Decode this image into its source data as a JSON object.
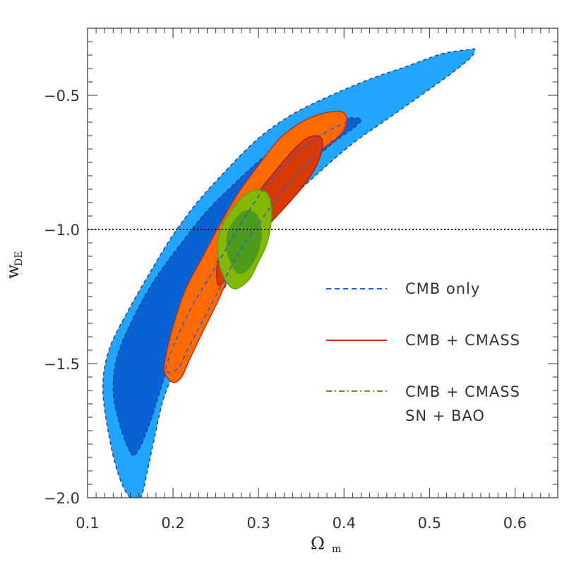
{
  "chart_data": {
    "type": "contour",
    "xlabel": "Ω",
    "xlabel_sub": "m",
    "ylabel": "w",
    "ylabel_sub": "DE",
    "xlim": [
      0.1,
      0.65
    ],
    "ylim": [
      -2.0,
      -0.25
    ],
    "xticks": [
      0.1,
      0.2,
      0.3,
      0.4,
      0.5,
      0.6
    ],
    "xtick_labels": [
      "0.1",
      "0.2",
      "0.3",
      "0.4",
      "0.5",
      "0.6"
    ],
    "yticks": [
      -2.0,
      -1.5,
      -1.0,
      -0.5
    ],
    "ytick_labels": [
      "−2.0",
      "−1.5",
      "−1.0",
      "−0.5"
    ],
    "reference_line": {
      "y": -1.0,
      "style": "dotted"
    },
    "legend": [
      {
        "label": "CMB only",
        "style": "dashed",
        "color": "#2a5fd0"
      },
      {
        "label": "CMB + CMASS",
        "style": "solid",
        "color": "#d02a10"
      },
      {
        "label": "CMB + CMASS",
        "label2": "SN + BAO",
        "style": "dashdot",
        "color": "#5aa010"
      }
    ],
    "contours": [
      {
        "name": "CMB only 95%",
        "fill": "#22a5ff",
        "stroke": "#1a3f8a",
        "dash": "5,4",
        "points": [
          [
            0.15,
            -2.0
          ],
          [
            0.138,
            -1.93
          ],
          [
            0.127,
            -1.8
          ],
          [
            0.118,
            -1.6
          ],
          [
            0.125,
            -1.45
          ],
          [
            0.148,
            -1.3
          ],
          [
            0.175,
            -1.15
          ],
          [
            0.2,
            -1.02
          ],
          [
            0.228,
            -0.9
          ],
          [
            0.262,
            -0.78
          ],
          [
            0.3,
            -0.66
          ],
          [
            0.34,
            -0.57
          ],
          [
            0.385,
            -0.5
          ],
          [
            0.43,
            -0.44
          ],
          [
            0.475,
            -0.39
          ],
          [
            0.515,
            -0.345
          ],
          [
            0.545,
            -0.33
          ],
          [
            0.553,
            -0.33
          ],
          [
            0.548,
            -0.36
          ],
          [
            0.525,
            -0.42
          ],
          [
            0.49,
            -0.5
          ],
          [
            0.45,
            -0.59
          ],
          [
            0.41,
            -0.68
          ],
          [
            0.37,
            -0.79
          ],
          [
            0.33,
            -0.91
          ],
          [
            0.3,
            -1.04
          ],
          [
            0.27,
            -1.17
          ],
          [
            0.24,
            -1.32
          ],
          [
            0.21,
            -1.48
          ],
          [
            0.19,
            -1.62
          ],
          [
            0.178,
            -1.78
          ],
          [
            0.17,
            -1.9
          ],
          [
            0.162,
            -2.0
          ]
        ]
      },
      {
        "name": "CMB only 68%",
        "fill": "#0a62d2",
        "stroke": "#1a3f8a",
        "dash": "5,4",
        "points": [
          [
            0.15,
            -1.83
          ],
          [
            0.137,
            -1.72
          ],
          [
            0.13,
            -1.6
          ],
          [
            0.135,
            -1.47
          ],
          [
            0.155,
            -1.32
          ],
          [
            0.18,
            -1.18
          ],
          [
            0.21,
            -1.05
          ],
          [
            0.24,
            -0.93
          ],
          [
            0.275,
            -0.82
          ],
          [
            0.31,
            -0.72
          ],
          [
            0.345,
            -0.65
          ],
          [
            0.38,
            -0.61
          ],
          [
            0.405,
            -0.585
          ],
          [
            0.42,
            -0.59
          ],
          [
            0.412,
            -0.62
          ],
          [
            0.39,
            -0.67
          ],
          [
            0.365,
            -0.74
          ],
          [
            0.335,
            -0.84
          ],
          [
            0.305,
            -0.96
          ],
          [
            0.278,
            -1.08
          ],
          [
            0.25,
            -1.2
          ],
          [
            0.222,
            -1.34
          ],
          [
            0.2,
            -1.46
          ],
          [
            0.185,
            -1.6
          ],
          [
            0.172,
            -1.73
          ],
          [
            0.158,
            -1.83
          ]
        ]
      },
      {
        "name": "CMB+CMASS 95%",
        "fill": "#ff6a00",
        "stroke": "#c02810",
        "dash": "",
        "points": [
          [
            0.2,
            -1.57
          ],
          [
            0.19,
            -1.53
          ],
          [
            0.193,
            -1.45
          ],
          [
            0.203,
            -1.33
          ],
          [
            0.215,
            -1.22
          ],
          [
            0.235,
            -1.1
          ],
          [
            0.255,
            -0.98
          ],
          [
            0.275,
            -0.87
          ],
          [
            0.3,
            -0.76
          ],
          [
            0.325,
            -0.66
          ],
          [
            0.35,
            -0.6
          ],
          [
            0.372,
            -0.57
          ],
          [
            0.39,
            -0.56
          ],
          [
            0.4,
            -0.565
          ],
          [
            0.403,
            -0.6
          ],
          [
            0.395,
            -0.65
          ],
          [
            0.375,
            -0.7
          ],
          [
            0.35,
            -0.76
          ],
          [
            0.33,
            -0.83
          ],
          [
            0.31,
            -0.92
          ],
          [
            0.29,
            -1.02
          ],
          [
            0.27,
            -1.14
          ],
          [
            0.252,
            -1.27
          ],
          [
            0.235,
            -1.38
          ],
          [
            0.22,
            -1.48
          ],
          [
            0.21,
            -1.55
          ]
        ]
      },
      {
        "name": "CMB+CMASS 68%",
        "fill": "#d93a00",
        "stroke": "#a02010",
        "dash": "",
        "points": [
          [
            0.252,
            -1.2
          ],
          [
            0.252,
            -1.12
          ],
          [
            0.262,
            -1.03
          ],
          [
            0.275,
            -0.96
          ],
          [
            0.292,
            -0.89
          ],
          [
            0.31,
            -0.82
          ],
          [
            0.328,
            -0.75
          ],
          [
            0.345,
            -0.69
          ],
          [
            0.36,
            -0.655
          ],
          [
            0.372,
            -0.655
          ],
          [
            0.375,
            -0.69
          ],
          [
            0.368,
            -0.76
          ],
          [
            0.352,
            -0.84
          ],
          [
            0.33,
            -0.92
          ],
          [
            0.31,
            -0.99
          ],
          [
            0.292,
            -1.06
          ],
          [
            0.272,
            -1.14
          ],
          [
            0.258,
            -1.2
          ]
        ]
      },
      {
        "name": "CMB+CMASS+SN+BAO 95%",
        "fill": "#84b800",
        "stroke": "#5aa010",
        "dash": "",
        "points": [
          [
            0.27,
            -1.22
          ],
          [
            0.256,
            -1.15
          ],
          [
            0.252,
            -1.05
          ],
          [
            0.26,
            -0.97
          ],
          [
            0.275,
            -0.9
          ],
          [
            0.29,
            -0.86
          ],
          [
            0.305,
            -0.855
          ],
          [
            0.313,
            -0.885
          ],
          [
            0.315,
            -0.96
          ],
          [
            0.31,
            -1.05
          ],
          [
            0.3,
            -1.12
          ],
          [
            0.288,
            -1.19
          ]
        ]
      },
      {
        "name": "CMB+CMASS+SN+BAO 68%",
        "fill": "#4e9a1c",
        "stroke": "#4e9a1c",
        "dash": "",
        "points": [
          [
            0.275,
            -1.16
          ],
          [
            0.265,
            -1.1
          ],
          [
            0.263,
            -1.03
          ],
          [
            0.27,
            -0.975
          ],
          [
            0.282,
            -0.935
          ],
          [
            0.294,
            -0.935
          ],
          [
            0.301,
            -0.97
          ],
          [
            0.303,
            -1.03
          ],
          [
            0.297,
            -1.1
          ],
          [
            0.287,
            -1.15
          ]
        ]
      }
    ],
    "dashed_inner": {
      "stroke": "#2a5fd0",
      "points": [
        [
          0.192,
          -1.52
        ],
        [
          0.205,
          -1.4
        ],
        [
          0.225,
          -1.27
        ],
        [
          0.248,
          -1.15
        ],
        [
          0.27,
          -1.03
        ],
        [
          0.293,
          -0.91
        ],
        [
          0.318,
          -0.8
        ],
        [
          0.345,
          -0.71
        ],
        [
          0.375,
          -0.645
        ],
        [
          0.4,
          -0.605
        ],
        [
          0.408,
          -0.61
        ],
        [
          0.398,
          -0.64
        ],
        [
          0.375,
          -0.7
        ],
        [
          0.348,
          -0.78
        ],
        [
          0.322,
          -0.88
        ],
        [
          0.3,
          -0.98
        ],
        [
          0.278,
          -1.08
        ],
        [
          0.258,
          -1.2
        ],
        [
          0.238,
          -1.32
        ],
        [
          0.22,
          -1.43
        ],
        [
          0.205,
          -1.52
        ]
      ]
    }
  }
}
